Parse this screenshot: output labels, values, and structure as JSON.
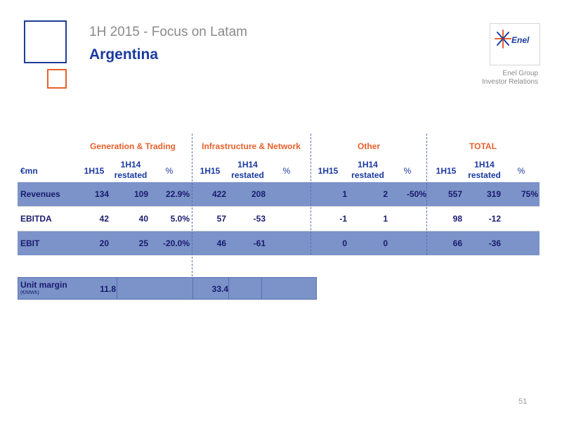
{
  "header": {
    "subtitle": "1H 2015 - Focus on Latam",
    "title": "Argentina",
    "logo_text": "Enel",
    "company_line1": "Enel Group",
    "company_line2": "Investor Relations"
  },
  "table": {
    "unit_label": "€mn",
    "groups": [
      "Generation & Trading",
      "Infrastructure & Network",
      "Other",
      "TOTAL"
    ],
    "columns": {
      "col_1h15": "1H15",
      "col_1h14_line1": "1H14",
      "col_1h14_line2": "restated",
      "col_pct": "%"
    },
    "rows": [
      {
        "label": "Revenues",
        "values": [
          "134",
          "109",
          "22.9%",
          "422",
          "208",
          "",
          "1",
          "2",
          "-50%",
          "557",
          "319",
          "75%"
        ]
      },
      {
        "label": "EBITDA",
        "values": [
          "42",
          "40",
          "5.0%",
          "57",
          "-53",
          "",
          "-1",
          "1",
          "",
          "98",
          "-12",
          ""
        ]
      },
      {
        "label": "EBIT",
        "values": [
          "20",
          "25",
          "-20.0%",
          "46",
          "-61",
          "",
          "0",
          "0",
          "",
          "66",
          "-36",
          ""
        ]
      }
    ],
    "unit_margin": {
      "label": "Unit margin",
      "sub": "(€/MWh)",
      "gen_value": "11.8",
      "infra_value": "33.4"
    }
  },
  "footer": {
    "page_number": "51"
  },
  "colors": {
    "blue": "#1a3aa0",
    "orange": "#e8602c",
    "row_fill": "#7b93c8"
  }
}
